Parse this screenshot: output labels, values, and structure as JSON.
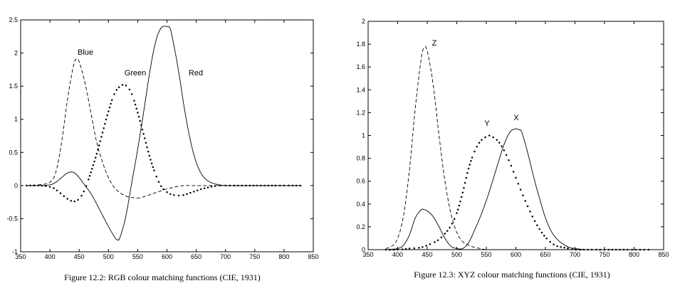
{
  "chart_data": [
    {
      "type": "line",
      "caption": "Figure 12.2: RGB colour matching functions (CIE, 1931)",
      "xlim": [
        350,
        850
      ],
      "ylim": [
        -1,
        2.5
      ],
      "xticks": [
        350,
        400,
        450,
        500,
        550,
        600,
        650,
        700,
        750,
        800,
        850
      ],
      "yticks": [
        -1,
        -0.5,
        0,
        0.5,
        1,
        1.5,
        2,
        2.5
      ],
      "grid": false,
      "series": [
        {
          "name": "Blue",
          "style": "dashed",
          "x": [
            360,
            380,
            400,
            410,
            420,
            430,
            440,
            445,
            450,
            460,
            470,
            480,
            490,
            500,
            510,
            520,
            530,
            540,
            550,
            560,
            570,
            580,
            590,
            600,
            610,
            620,
            630,
            640,
            650,
            660,
            680,
            700,
            750,
            800,
            830
          ],
          "y": [
            0,
            0.01,
            0.05,
            0.2,
            0.65,
            1.3,
            1.8,
            1.91,
            1.87,
            1.55,
            1.1,
            0.65,
            0.35,
            0.12,
            -0.03,
            -0.11,
            -0.16,
            -0.18,
            -0.19,
            -0.17,
            -0.14,
            -0.11,
            -0.08,
            -0.05,
            -0.03,
            -0.01,
            0,
            0,
            0,
            0,
            0,
            0,
            0,
            0,
            0
          ]
        },
        {
          "name": "Green",
          "style": "dotted",
          "x": [
            360,
            380,
            400,
            410,
            420,
            430,
            440,
            450,
            460,
            470,
            480,
            490,
            500,
            510,
            520,
            530,
            540,
            550,
            560,
            570,
            580,
            590,
            600,
            610,
            620,
            630,
            640,
            650,
            660,
            670,
            680,
            690,
            700,
            750,
            800,
            830
          ],
          "y": [
            0,
            0,
            -0.02,
            -0.06,
            -0.13,
            -0.2,
            -0.24,
            -0.2,
            -0.05,
            0.2,
            0.48,
            0.8,
            1.12,
            1.38,
            1.5,
            1.51,
            1.38,
            1.1,
            0.78,
            0.45,
            0.18,
            -0.01,
            -0.1,
            -0.14,
            -0.15,
            -0.14,
            -0.11,
            -0.08,
            -0.05,
            -0.03,
            -0.01,
            0,
            0,
            0,
            0,
            0
          ]
        },
        {
          "name": "Red",
          "style": "solid",
          "x": [
            360,
            380,
            400,
            410,
            420,
            430,
            440,
            450,
            460,
            470,
            480,
            490,
            500,
            510,
            515,
            520,
            530,
            540,
            550,
            560,
            570,
            580,
            590,
            600,
            605,
            610,
            620,
            630,
            640,
            650,
            660,
            670,
            680,
            690,
            700,
            720,
            750,
            800,
            830
          ],
          "y": [
            0,
            0,
            0.01,
            0.05,
            0.12,
            0.19,
            0.2,
            0.12,
            0,
            -0.12,
            -0.28,
            -0.45,
            -0.62,
            -0.77,
            -0.82,
            -0.78,
            -0.45,
            0.05,
            0.55,
            1.1,
            1.68,
            2.15,
            2.38,
            2.4,
            2.38,
            2.2,
            1.72,
            1.15,
            0.68,
            0.35,
            0.16,
            0.07,
            0.03,
            0.01,
            0,
            0,
            0,
            0,
            0
          ]
        }
      ]
    },
    {
      "type": "line",
      "caption": "Figure 12.3: XYZ colour matching functions (CIE, 1931)",
      "xlim": [
        350,
        850
      ],
      "ylim": [
        0,
        2
      ],
      "xticks": [
        350,
        400,
        450,
        500,
        550,
        600,
        650,
        700,
        750,
        800,
        850
      ],
      "yticks": [
        0,
        0.2,
        0.4,
        0.6,
        0.8,
        1,
        1.2,
        1.4,
        1.6,
        1.8,
        2
      ],
      "grid": false,
      "series": [
        {
          "name": "Z",
          "style": "dashed",
          "x": [
            380,
            390,
            400,
            410,
            420,
            430,
            440,
            445,
            450,
            460,
            470,
            480,
            490,
            500,
            510,
            520,
            530,
            540,
            550,
            560,
            580,
            600,
            650,
            700,
            800,
            830
          ],
          "y": [
            0.01,
            0.03,
            0.1,
            0.3,
            0.7,
            1.25,
            1.68,
            1.77,
            1.74,
            1.45,
            1.0,
            0.6,
            0.32,
            0.15,
            0.07,
            0.04,
            0.02,
            0.01,
            0,
            0,
            0,
            0,
            0,
            0,
            0,
            0
          ]
        },
        {
          "name": "Y",
          "style": "dotted",
          "x": [
            380,
            400,
            420,
            440,
            460,
            470,
            480,
            490,
            500,
            510,
            520,
            530,
            540,
            550,
            555,
            560,
            570,
            580,
            590,
            600,
            610,
            620,
            630,
            640,
            650,
            660,
            670,
            680,
            690,
            700,
            720,
            750,
            800,
            830
          ],
          "y": [
            0,
            0,
            0.01,
            0.02,
            0.06,
            0.09,
            0.14,
            0.21,
            0.32,
            0.5,
            0.71,
            0.86,
            0.95,
            0.99,
            1.0,
            0.99,
            0.95,
            0.87,
            0.76,
            0.63,
            0.5,
            0.38,
            0.27,
            0.18,
            0.11,
            0.06,
            0.03,
            0.02,
            0.01,
            0,
            0,
            0,
            0,
            0
          ]
        },
        {
          "name": "X",
          "style": "solid",
          "x": [
            380,
            400,
            410,
            420,
            430,
            440,
            445,
            450,
            460,
            470,
            480,
            490,
            500,
            510,
            520,
            530,
            540,
            550,
            560,
            570,
            580,
            590,
            600,
            605,
            610,
            620,
            630,
            640,
            650,
            660,
            670,
            680,
            690,
            700,
            720,
            750,
            800,
            830
          ],
          "y": [
            0,
            0.01,
            0.04,
            0.13,
            0.28,
            0.35,
            0.35,
            0.34,
            0.29,
            0.2,
            0.1,
            0.03,
            0.01,
            0.01,
            0.06,
            0.17,
            0.29,
            0.43,
            0.59,
            0.76,
            0.92,
            1.03,
            1.06,
            1.05,
            1.03,
            0.85,
            0.64,
            0.45,
            0.28,
            0.16,
            0.09,
            0.05,
            0.02,
            0.01,
            0,
            0,
            0,
            0
          ]
        }
      ]
    }
  ]
}
